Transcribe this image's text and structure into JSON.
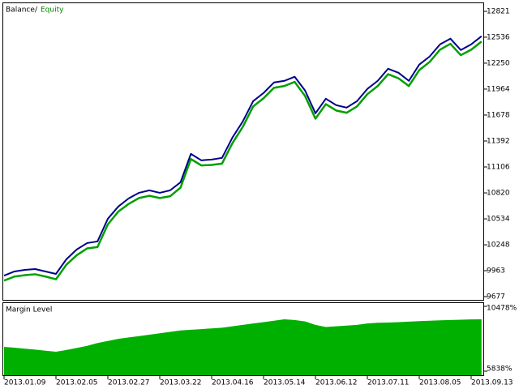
{
  "chart_data": [
    {
      "type": "line",
      "legend_separator": "/",
      "series": [
        {
          "name": "Balance",
          "color": "#00008b",
          "values": [
            9909,
            9954,
            9972,
            9981,
            9954,
            9927,
            10088,
            10196,
            10267,
            10285,
            10535,
            10669,
            10759,
            10821,
            10848,
            10821,
            10848,
            10937,
            11250,
            11179,
            11188,
            11206,
            11429,
            11608,
            11831,
            11921,
            12037,
            12055,
            12100,
            11948,
            11697,
            11858,
            11787,
            11760,
            11831,
            11966,
            12055,
            12189,
            12144,
            12055,
            12234,
            12323,
            12457,
            12520,
            12395,
            12457,
            12547
          ]
        },
        {
          "name": "Equity",
          "color": "#00a000",
          "values": [
            9880,
            9925,
            9940,
            9950,
            9925,
            9895,
            10055,
            10160,
            10235,
            10250,
            10500,
            10640,
            10725,
            10790,
            10815,
            10790,
            10810,
            10905,
            11220,
            11150,
            11155,
            11170,
            11395,
            11575,
            11800,
            11890,
            12005,
            12025,
            12070,
            11915,
            11665,
            11825,
            11755,
            11730,
            11800,
            11935,
            12025,
            12155,
            12110,
            12025,
            12200,
            12290,
            12425,
            12490,
            12365,
            12425,
            12515
          ]
        }
      ],
      "ylim": [
        9677,
        12821
      ],
      "yticks": [
        12821,
        12536,
        12250,
        11964,
        11678,
        11392,
        11106,
        10820,
        10534,
        10248,
        9963,
        9677
      ]
    },
    {
      "type": "area",
      "title": "Margin Level",
      "color": "#00b000",
      "categories": [
        "2013.01.09",
        null,
        null,
        null,
        null,
        "2013.02.05",
        null,
        null,
        null,
        null,
        "2013.02.27",
        null,
        null,
        null,
        null,
        "2013.03.22",
        null,
        null,
        null,
        null,
        "2013.04.16",
        null,
        null,
        null,
        null,
        "2013.05.14",
        null,
        null,
        null,
        null,
        "2013.06.12",
        null,
        null,
        null,
        null,
        "2013.07.11",
        null,
        null,
        null,
        null,
        "2013.08.05",
        null,
        null,
        null,
        null,
        "2013.09.13",
        null
      ],
      "values": [
        7578,
        7520,
        7450,
        7380,
        7300,
        7230,
        7350,
        7500,
        7650,
        7850,
        8000,
        8150,
        8250,
        8350,
        8450,
        8550,
        8650,
        8750,
        8800,
        8850,
        8900,
        8950,
        9050,
        9150,
        9250,
        9350,
        9450,
        9550,
        9500,
        9400,
        9150,
        9000,
        9050,
        9100,
        9150,
        9250,
        9300,
        9320,
        9350,
        9380,
        9420,
        9450,
        9480,
        9500,
        9520,
        9540,
        9550
      ],
      "ylim": [
        5838,
        10478
      ],
      "yticks": [
        {
          "value": 10478,
          "label": "10478%"
        },
        {
          "value": 5838,
          "label": "5838%"
        }
      ]
    }
  ]
}
